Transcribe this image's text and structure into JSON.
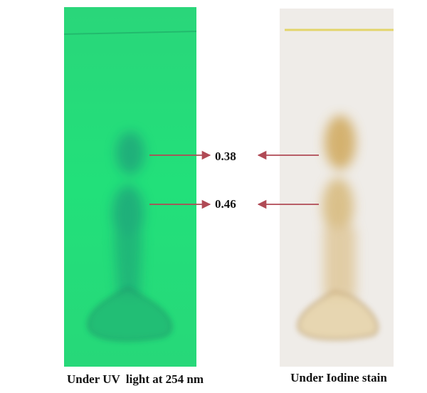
{
  "panels": [
    {
      "caption": "Under UV  light at 254 nm"
    },
    {
      "caption": "Under Iodine stain"
    }
  ],
  "rf_labels": [
    "0.38",
    "0.46"
  ]
}
